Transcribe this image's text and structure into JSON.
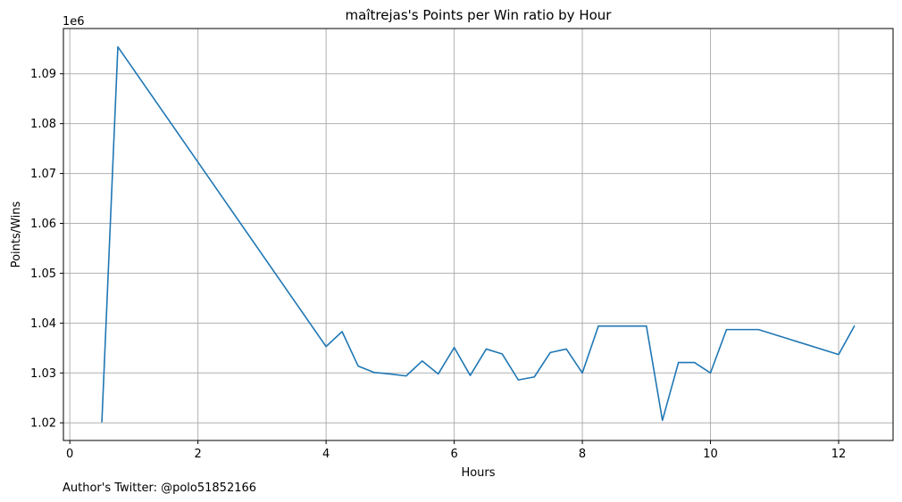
{
  "chart_data": {
    "type": "line",
    "title": "maîtrejas's Points per Win ratio by Hour",
    "xlabel": "Hours",
    "ylabel": "Points/Wins",
    "y_offset_label": "1e6",
    "xlim": [
      -0.1,
      12.85
    ],
    "ylim": [
      1.01646,
      1.09907
    ],
    "x_ticks": [
      0,
      2,
      4,
      6,
      8,
      10,
      12
    ],
    "y_ticks": [
      1.02,
      1.03,
      1.04,
      1.05,
      1.06,
      1.07,
      1.08,
      1.09
    ],
    "y_tick_labels": [
      "1.02",
      "1.03",
      "1.04",
      "1.05",
      "1.06",
      "1.07",
      "1.08",
      "1.09"
    ],
    "grid": true,
    "series": [
      {
        "color": "#1f77b4",
        "x": [
          0.5,
          0.75,
          4.0,
          4.25,
          4.5,
          4.75,
          5.0,
          5.25,
          5.5,
          5.75,
          6.0,
          6.25,
          6.5,
          6.75,
          7.0,
          7.25,
          7.5,
          7.75,
          8.0,
          8.25,
          9.0,
          9.25,
          9.5,
          9.75,
          10.0,
          10.25,
          10.75,
          12.0,
          12.25
        ],
        "y": [
          1.0201,
          1.0954,
          1.0353,
          1.0383,
          1.0314,
          1.0301,
          1.0298,
          1.0294,
          1.0324,
          1.0298,
          1.0351,
          1.0295,
          1.0348,
          1.0338,
          1.0286,
          1.0292,
          1.0341,
          1.0348,
          1.03,
          1.0394,
          1.0394,
          1.0205,
          1.0321,
          1.0321,
          1.03,
          1.0387,
          1.0387,
          1.0337,
          1.0395
        ]
      }
    ]
  },
  "footer": {
    "credit": "Author's Twitter: @polo51852166"
  }
}
